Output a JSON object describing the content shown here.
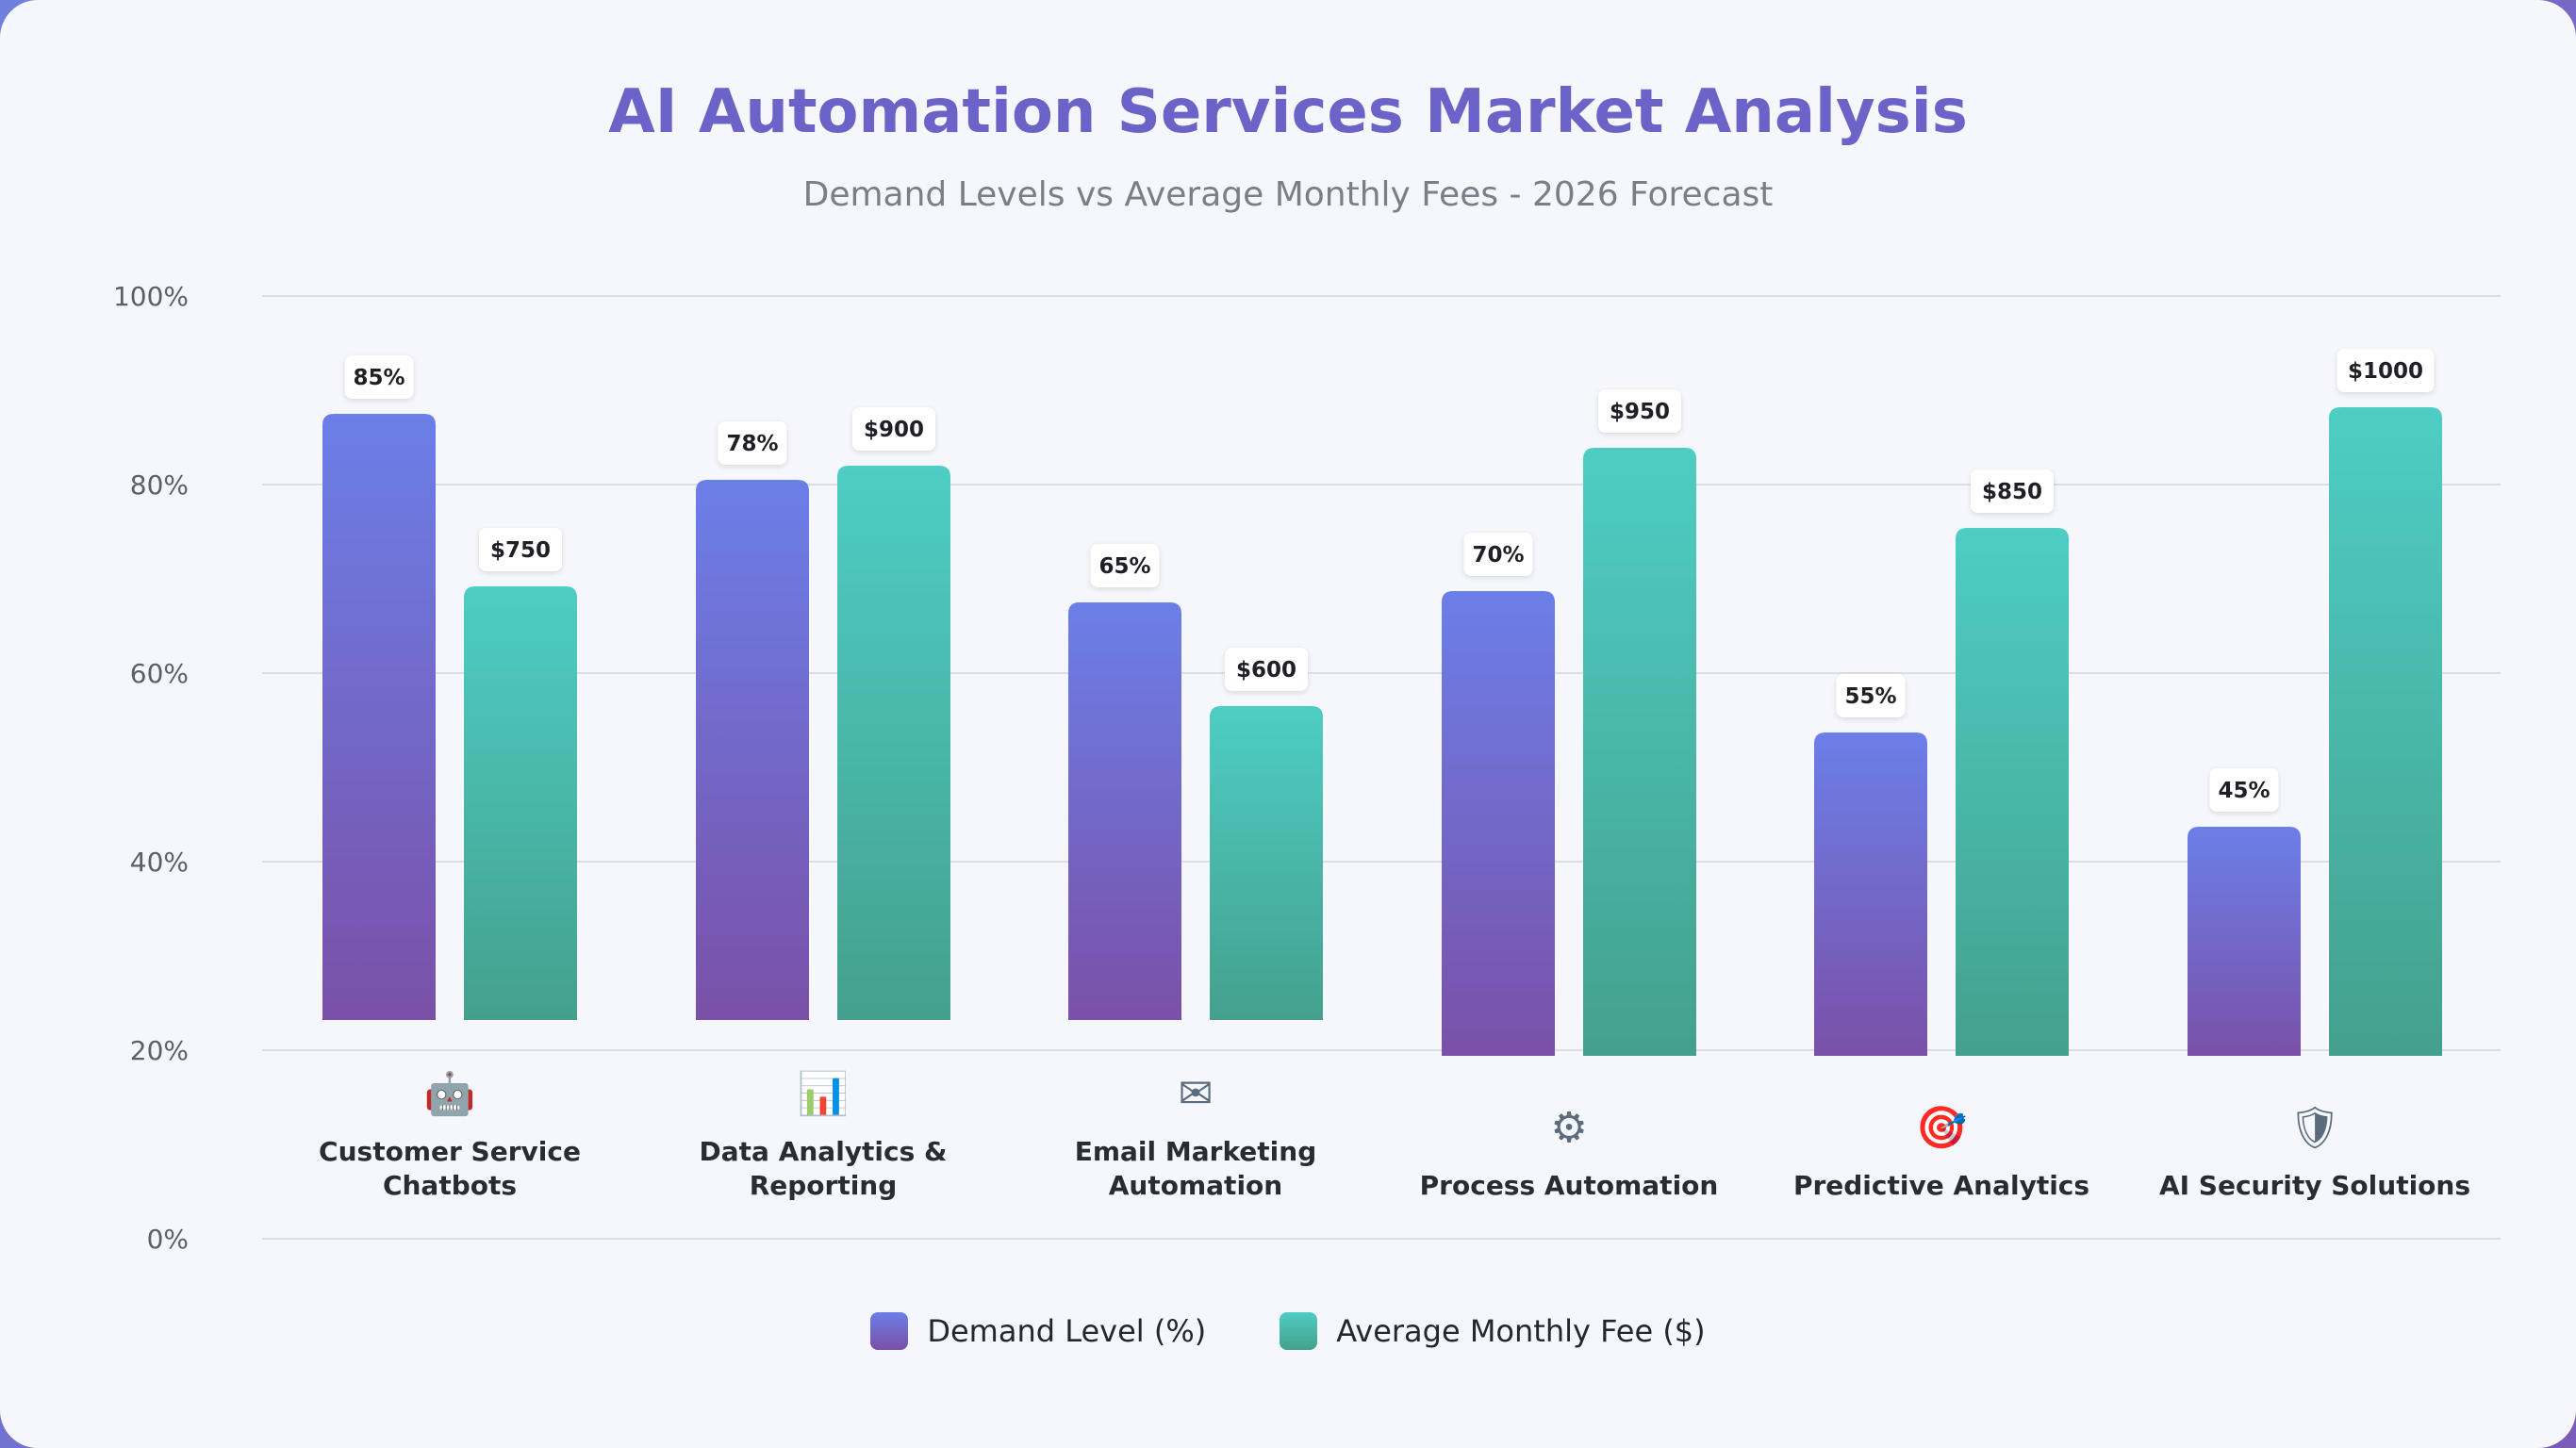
{
  "title": "AI Automation Services Market Analysis",
  "subtitle": "Demand Levels vs Average Monthly Fees - 2026 Forecast",
  "colors": {
    "demand_top": "#6b7fe8",
    "demand_bottom": "#7a50a8",
    "fee_top": "#4ecdc4",
    "fee_bottom": "#44a08d",
    "title": "#6c63c9"
  },
  "legend": {
    "demand": "Demand Level (%)",
    "fee": "Average Monthly Fee ($)"
  },
  "chart_data": {
    "type": "bar",
    "y_ticks": [
      "0%",
      "20%",
      "40%",
      "60%",
      "80%",
      "100%"
    ],
    "ylim": [
      0,
      100
    ],
    "categories": [
      {
        "label_lines": [
          "Customer Service",
          "Chatbots"
        ],
        "icon": "robot-icon"
      },
      {
        "label_lines": [
          "Data Analytics &",
          "Reporting"
        ],
        "icon": "bar-chart-icon"
      },
      {
        "label_lines": [
          "Email Marketing",
          "Automation"
        ],
        "icon": "envelope-icon"
      },
      {
        "label_lines": [
          "Process Automation"
        ],
        "icon": "gear-icon"
      },
      {
        "label_lines": [
          "Predictive Analytics"
        ],
        "icon": "target-icon"
      },
      {
        "label_lines": [
          "AI Security Solutions"
        ],
        "icon": "shield-icon"
      }
    ],
    "series": [
      {
        "name": "Demand Level (%)",
        "values": [
          85,
          78,
          65,
          70,
          55,
          45
        ],
        "labels": [
          "85%",
          "78%",
          "65%",
          "70%",
          "55%",
          "45%"
        ]
      },
      {
        "name": "Average Monthly Fee ($)",
        "values": [
          750,
          900,
          600,
          950,
          850,
          1000
        ],
        "labels": [
          "$750",
          "$900",
          "$600",
          "$950",
          "$850",
          "$1000"
        ]
      }
    ],
    "grid": true,
    "legend_position": "bottom-center"
  }
}
